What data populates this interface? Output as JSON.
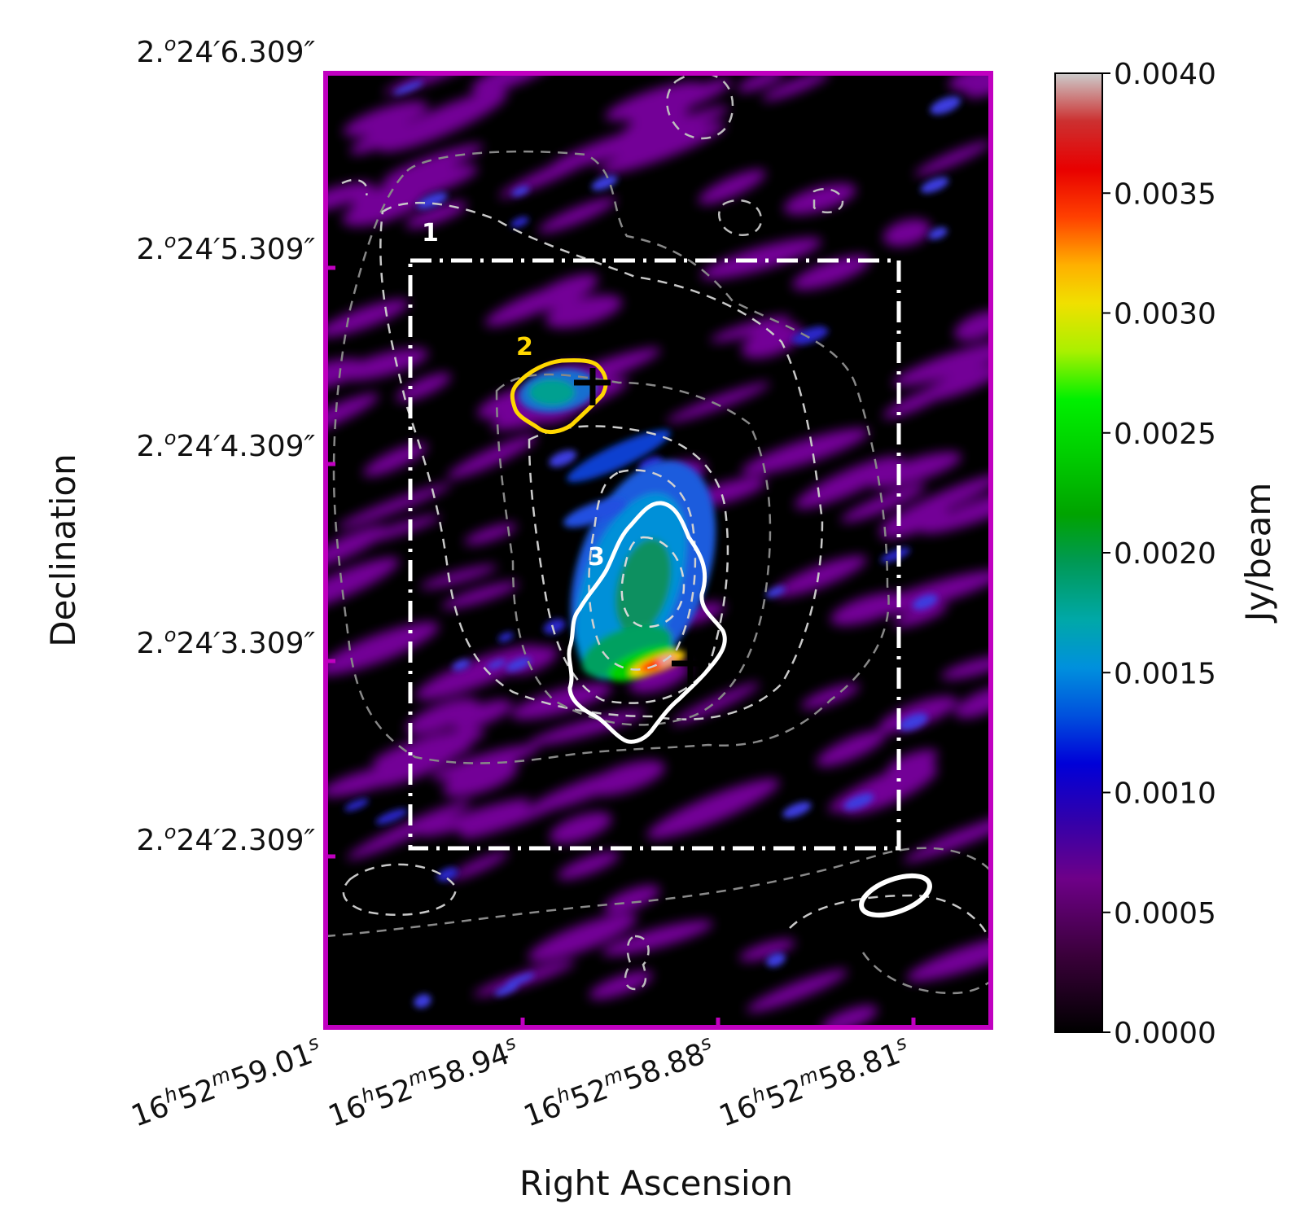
{
  "chart_data": {
    "type": "heatmap",
    "title": "",
    "xlabel": "Right Ascension",
    "ylabel": "Declination",
    "colorbar": {
      "label": "Jy/beam",
      "range": [
        0.0,
        0.004
      ],
      "ticks": [
        "0.0000",
        "0.0005",
        "0.0010",
        "0.0015",
        "0.0020",
        "0.0025",
        "0.0030",
        "0.0035",
        "0.0040"
      ],
      "colormap": "nipy_spectral"
    },
    "x_ticks": [
      {
        "h": "16",
        "m": "52",
        "s": "59.01"
      },
      {
        "h": "16",
        "m": "52",
        "s": "58.94"
      },
      {
        "h": "16",
        "m": "52",
        "s": "58.88"
      },
      {
        "h": "16",
        "m": "52",
        "s": "58.81"
      }
    ],
    "y_ticks": [
      {
        "deg": "2.",
        "arcmin": "24",
        "arcsec": "6.309"
      },
      {
        "deg": "2.",
        "arcmin": "24",
        "arcsec": "5.309"
      },
      {
        "deg": "2.",
        "arcmin": "24",
        "arcsec": "4.309"
      },
      {
        "deg": "2.",
        "arcmin": "24",
        "arcsec": "3.309"
      },
      {
        "deg": "2.",
        "arcmin": "24",
        "arcsec": "2.309"
      }
    ],
    "regions": [
      {
        "label": "1",
        "color": "#ffffff",
        "style": "dash-dot",
        "shape": "rectangle"
      },
      {
        "label": "2",
        "color": "#ffd700",
        "style": "solid",
        "shape": "contour"
      },
      {
        "label": "3",
        "color": "#ffffff",
        "style": "solid",
        "shape": "contour"
      }
    ],
    "peaks": [
      {
        "marker": "+",
        "near_region": "2",
        "color": "#000000"
      },
      {
        "marker": "+",
        "near_region": "3",
        "color": "#000000"
      }
    ],
    "beam": {
      "shape": "ellipse",
      "color": "#ffffff",
      "location": "bottom-right"
    },
    "frame_color": "#c000c0",
    "contours": {
      "style": "dashed",
      "color": "#bbbbbb"
    }
  }
}
